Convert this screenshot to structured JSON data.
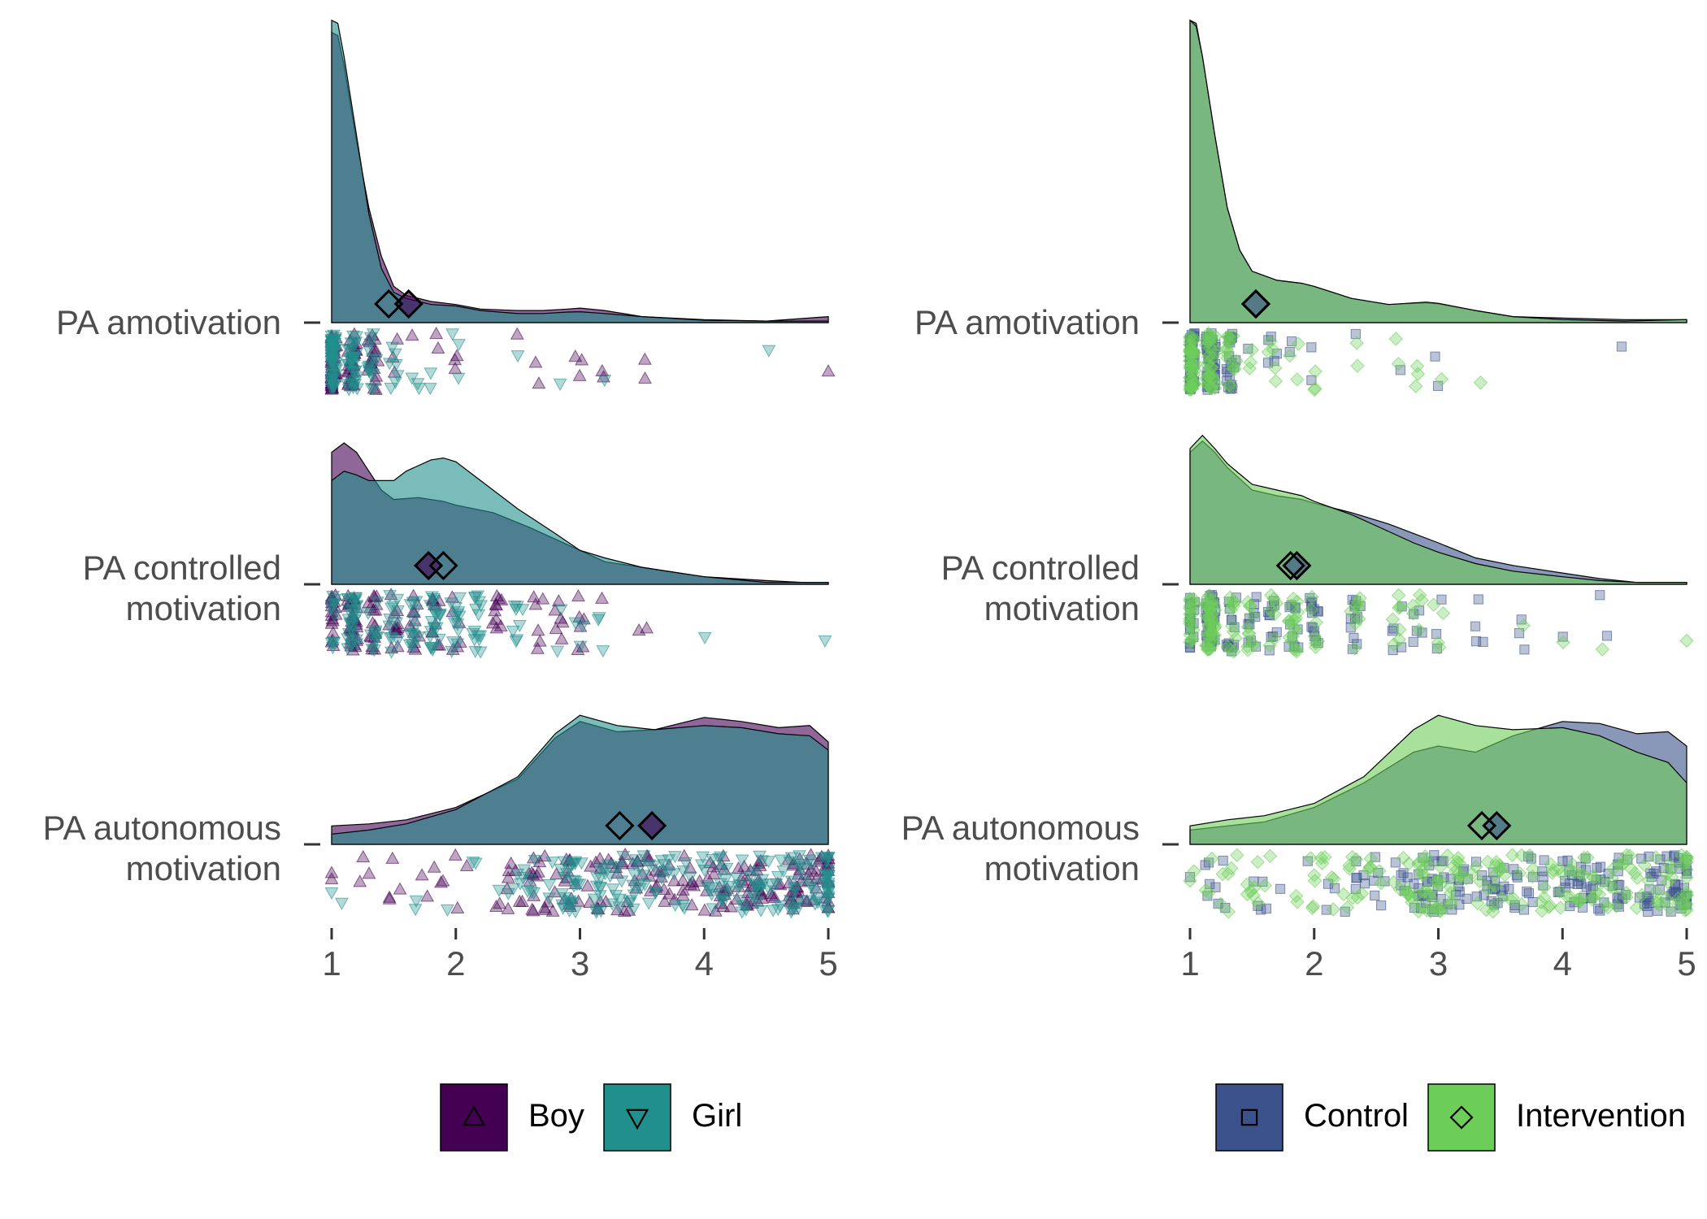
{
  "chart_data": [
    {
      "type": "raincloud",
      "panel": "left",
      "x_ticks": [
        "1",
        "2",
        "3",
        "4",
        "5"
      ],
      "xlim": [
        1,
        5
      ],
      "rows": [
        {
          "label_lines": [
            "PA amotivation"
          ]
        },
        {
          "label_lines": [
            "PA controlled",
            "motivation"
          ]
        },
        {
          "label_lines": [
            "PA autonomous",
            "motivation"
          ]
        }
      ],
      "series": [
        {
          "name": "Boy",
          "color": "#440154",
          "marker": "triangle-up",
          "means": [
            1.62,
            1.78,
            3.58
          ],
          "density": [
            [
              [
                1,
                0.96
              ],
              [
                1.05,
                0.95
              ],
              [
                1.1,
                0.85
              ],
              [
                1.2,
                0.6
              ],
              [
                1.3,
                0.38
              ],
              [
                1.4,
                0.22
              ],
              [
                1.5,
                0.12
              ],
              [
                1.6,
                0.09
              ],
              [
                1.8,
                0.07
              ],
              [
                2.0,
                0.06
              ],
              [
                2.2,
                0.045
              ],
              [
                2.5,
                0.04
              ],
              [
                2.7,
                0.04
              ],
              [
                2.9,
                0.045
              ],
              [
                3.0,
                0.048
              ],
              [
                3.2,
                0.04
              ],
              [
                3.5,
                0.02
              ],
              [
                4.0,
                0.01
              ],
              [
                4.5,
                0.005
              ],
              [
                5,
                0.02
              ]
            ],
            [
              [
                1,
                0.7
              ],
              [
                1.1,
                0.75
              ],
              [
                1.2,
                0.7
              ],
              [
                1.3,
                0.6
              ],
              [
                1.4,
                0.5
              ],
              [
                1.5,
                0.45
              ],
              [
                1.7,
                0.46
              ],
              [
                1.9,
                0.44
              ],
              [
                2.0,
                0.42
              ],
              [
                2.3,
                0.38
              ],
              [
                2.6,
                0.3
              ],
              [
                2.8,
                0.24
              ],
              [
                3.0,
                0.18
              ],
              [
                3.2,
                0.12
              ],
              [
                3.5,
                0.09
              ],
              [
                3.8,
                0.06
              ],
              [
                4.0,
                0.04
              ],
              [
                4.5,
                0.02
              ],
              [
                4.8,
                0.01
              ],
              [
                5,
                0.01
              ]
            ],
            [
              [
                1,
                0.09
              ],
              [
                1.3,
                0.1
              ],
              [
                1.6,
                0.12
              ],
              [
                2.0,
                0.18
              ],
              [
                2.5,
                0.32
              ],
              [
                2.8,
                0.52
              ],
              [
                3.0,
                0.6
              ],
              [
                3.3,
                0.55
              ],
              [
                3.6,
                0.56
              ],
              [
                4.0,
                0.62
              ],
              [
                4.3,
                0.6
              ],
              [
                4.6,
                0.57
              ],
              [
                4.85,
                0.58
              ],
              [
                5,
                0.5
              ]
            ]
          ]
        },
        {
          "name": "Girl",
          "color": "#21908c",
          "marker": "triangle-down",
          "means": [
            1.46,
            1.9,
            3.32
          ],
          "density": [
            [
              [
                1,
                1.0
              ],
              [
                1.05,
                0.99
              ],
              [
                1.1,
                0.88
              ],
              [
                1.2,
                0.62
              ],
              [
                1.3,
                0.36
              ],
              [
                1.4,
                0.18
              ],
              [
                1.5,
                0.1
              ],
              [
                1.6,
                0.08
              ],
              [
                1.8,
                0.06
              ],
              [
                2.0,
                0.055
              ],
              [
                2.2,
                0.04
              ],
              [
                2.5,
                0.03
              ],
              [
                2.7,
                0.03
              ],
              [
                2.9,
                0.035
              ],
              [
                3.0,
                0.036
              ],
              [
                3.2,
                0.03
              ],
              [
                3.5,
                0.02
              ],
              [
                4.0,
                0.008
              ],
              [
                4.5,
                0.005
              ],
              [
                5,
                0.005
              ]
            ],
            [
              [
                1,
                0.55
              ],
              [
                1.1,
                0.6
              ],
              [
                1.2,
                0.58
              ],
              [
                1.3,
                0.55
              ],
              [
                1.5,
                0.55
              ],
              [
                1.6,
                0.6
              ],
              [
                1.8,
                0.66
              ],
              [
                1.9,
                0.67
              ],
              [
                2.0,
                0.65
              ],
              [
                2.2,
                0.55
              ],
              [
                2.5,
                0.4
              ],
              [
                2.8,
                0.27
              ],
              [
                3.0,
                0.18
              ],
              [
                3.2,
                0.14
              ],
              [
                3.5,
                0.09
              ],
              [
                3.8,
                0.06
              ],
              [
                4.0,
                0.04
              ],
              [
                4.5,
                0.01
              ],
              [
                5,
                0.01
              ]
            ],
            [
              [
                1,
                0.05
              ],
              [
                1.3,
                0.07
              ],
              [
                1.6,
                0.1
              ],
              [
                2.0,
                0.17
              ],
              [
                2.5,
                0.33
              ],
              [
                2.8,
                0.54
              ],
              [
                3.0,
                0.63
              ],
              [
                3.3,
                0.58
              ],
              [
                3.6,
                0.56
              ],
              [
                4.0,
                0.58
              ],
              [
                4.3,
                0.57
              ],
              [
                4.6,
                0.54
              ],
              [
                4.85,
                0.53
              ],
              [
                5,
                0.46
              ]
            ]
          ]
        }
      ]
    },
    {
      "type": "raincloud",
      "panel": "right",
      "x_ticks": [
        "1",
        "2",
        "3",
        "4",
        "5"
      ],
      "xlim": [
        1,
        5
      ],
      "rows": [
        {
          "label_lines": [
            "PA amotivation"
          ]
        },
        {
          "label_lines": [
            "PA controlled",
            "motivation"
          ]
        },
        {
          "label_lines": [
            "PA autonomous",
            "motivation"
          ]
        }
      ],
      "series": [
        {
          "name": "Control",
          "color": "#3b528b",
          "marker": "square",
          "means": [
            1.53,
            1.86,
            3.47
          ],
          "density": [
            [
              [
                1,
                1.0
              ],
              [
                1.05,
                0.99
              ],
              [
                1.1,
                0.88
              ],
              [
                1.2,
                0.62
              ],
              [
                1.3,
                0.38
              ],
              [
                1.4,
                0.24
              ],
              [
                1.5,
                0.17
              ],
              [
                1.7,
                0.14
              ],
              [
                1.9,
                0.13
              ],
              [
                2.0,
                0.12
              ],
              [
                2.3,
                0.08
              ],
              [
                2.6,
                0.06
              ],
              [
                2.9,
                0.065
              ],
              [
                3.0,
                0.062
              ],
              [
                3.3,
                0.04
              ],
              [
                3.6,
                0.02
              ],
              [
                4.0,
                0.015
              ],
              [
                4.5,
                0.01
              ],
              [
                5,
                0.01
              ]
            ],
            [
              [
                1,
                0.7
              ],
              [
                1.1,
                0.76
              ],
              [
                1.2,
                0.7
              ],
              [
                1.3,
                0.62
              ],
              [
                1.5,
                0.5
              ],
              [
                1.7,
                0.47
              ],
              [
                1.9,
                0.45
              ],
              [
                2.0,
                0.43
              ],
              [
                2.3,
                0.38
              ],
              [
                2.6,
                0.32
              ],
              [
                2.8,
                0.27
              ],
              [
                3.0,
                0.22
              ],
              [
                3.3,
                0.14
              ],
              [
                3.6,
                0.1
              ],
              [
                4.0,
                0.06
              ],
              [
                4.3,
                0.03
              ],
              [
                4.6,
                0.01
              ],
              [
                5,
                0.01
              ]
            ],
            [
              [
                1,
                0.07
              ],
              [
                1.3,
                0.09
              ],
              [
                1.6,
                0.11
              ],
              [
                2.0,
                0.18
              ],
              [
                2.4,
                0.3
              ],
              [
                2.8,
                0.45
              ],
              [
                3.0,
                0.48
              ],
              [
                3.3,
                0.45
              ],
              [
                3.6,
                0.53
              ],
              [
                4.0,
                0.6
              ],
              [
                4.3,
                0.59
              ],
              [
                4.6,
                0.54
              ],
              [
                4.85,
                0.55
              ],
              [
                5,
                0.48
              ]
            ]
          ]
        },
        {
          "name": "Intervention",
          "color": "#6ccd59",
          "marker": "diamond",
          "means": [
            1.53,
            1.81,
            3.35
          ],
          "density": [
            [
              [
                1,
                1.0
              ],
              [
                1.05,
                0.98
              ],
              [
                1.1,
                0.88
              ],
              [
                1.2,
                0.62
              ],
              [
                1.3,
                0.38
              ],
              [
                1.4,
                0.24
              ],
              [
                1.5,
                0.17
              ],
              [
                1.7,
                0.14
              ],
              [
                1.9,
                0.13
              ],
              [
                2.0,
                0.12
              ],
              [
                2.3,
                0.08
              ],
              [
                2.6,
                0.06
              ],
              [
                2.9,
                0.068
              ],
              [
                3.0,
                0.064
              ],
              [
                3.3,
                0.04
              ],
              [
                3.6,
                0.02
              ],
              [
                4.0,
                0.01
              ],
              [
                4.5,
                0.005
              ],
              [
                5,
                0.01
              ]
            ],
            [
              [
                1,
                0.72
              ],
              [
                1.1,
                0.79
              ],
              [
                1.2,
                0.72
              ],
              [
                1.3,
                0.64
              ],
              [
                1.5,
                0.53
              ],
              [
                1.7,
                0.5
              ],
              [
                1.9,
                0.47
              ],
              [
                2.0,
                0.44
              ],
              [
                2.3,
                0.37
              ],
              [
                2.6,
                0.28
              ],
              [
                2.8,
                0.22
              ],
              [
                3.0,
                0.17
              ],
              [
                3.3,
                0.11
              ],
              [
                3.6,
                0.07
              ],
              [
                4.0,
                0.04
              ],
              [
                4.3,
                0.02
              ],
              [
                4.6,
                0.01
              ],
              [
                5,
                0.01
              ]
            ],
            [
              [
                1,
                0.09
              ],
              [
                1.3,
                0.12
              ],
              [
                1.6,
                0.14
              ],
              [
                2.0,
                0.2
              ],
              [
                2.4,
                0.33
              ],
              [
                2.8,
                0.56
              ],
              [
                3.0,
                0.63
              ],
              [
                3.3,
                0.58
              ],
              [
                3.6,
                0.56
              ],
              [
                4.0,
                0.57
              ],
              [
                4.3,
                0.53
              ],
              [
                4.6,
                0.45
              ],
              [
                4.85,
                0.4
              ],
              [
                5,
                0.3
              ]
            ]
          ]
        }
      ]
    }
  ]
}
